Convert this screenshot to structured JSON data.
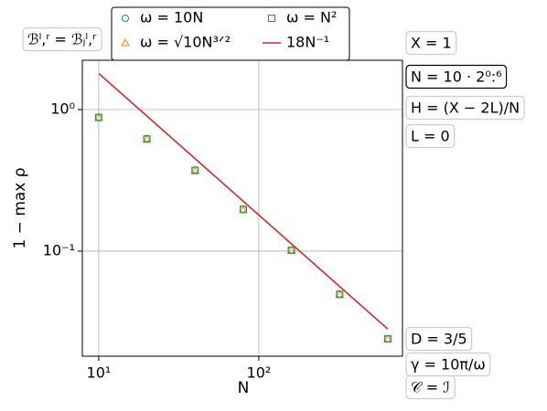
{
  "chart_data": {
    "type": "scatter",
    "x_label": "N",
    "y_label": "1 − max ρ",
    "xlog": true,
    "ylog": true,
    "grid": true,
    "xlim": [
      7.9,
      790
    ],
    "ylim": [
      0.0181,
      2.23
    ],
    "xticks": [
      {
        "value": 10,
        "label": "10¹"
      },
      {
        "value": 100,
        "label": "10²"
      }
    ],
    "yticks": [
      {
        "value": 0.1,
        "label": "10⁻¹"
      },
      {
        "value": 1,
        "label": "10⁰"
      }
    ],
    "x": [
      10,
      20,
      40,
      80,
      160,
      320,
      640
    ],
    "series": [
      {
        "name": "ω = 10N",
        "color": "#1f77b4",
        "marker": "circle",
        "values": [
          0.885,
          0.625,
          0.375,
          0.198,
          0.102,
          0.0498,
          0.0241
        ]
      },
      {
        "name": "ω = √10N³ᐟ²",
        "color": "#ff7f0e",
        "marker": "triangle",
        "values": [
          0.875,
          0.615,
          0.368,
          0.195,
          0.101,
          0.0492,
          0.0238
        ]
      },
      {
        "name": "ω = N²",
        "color": "#2ca02c",
        "marker": "square",
        "values": [
          0.88,
          0.62,
          0.372,
          0.197,
          0.1015,
          0.0495,
          0.024
        ]
      },
      {
        "name": "18N⁻¹",
        "color": "#d62728",
        "marker": "line",
        "x": [
          10,
          640
        ],
        "values": [
          1.8,
          0.028125
        ]
      }
    ],
    "annotations": [
      "ℬˡ,ʳ = ℬⱼˡ,ʳ",
      "X = 1",
      "N = 10 · 2⁰:⁶",
      "H = (X − 2L)/N",
      "L = 0",
      "D = 3/5",
      "γ = 10π/ω",
      "𝒞 = ℐ"
    ]
  }
}
